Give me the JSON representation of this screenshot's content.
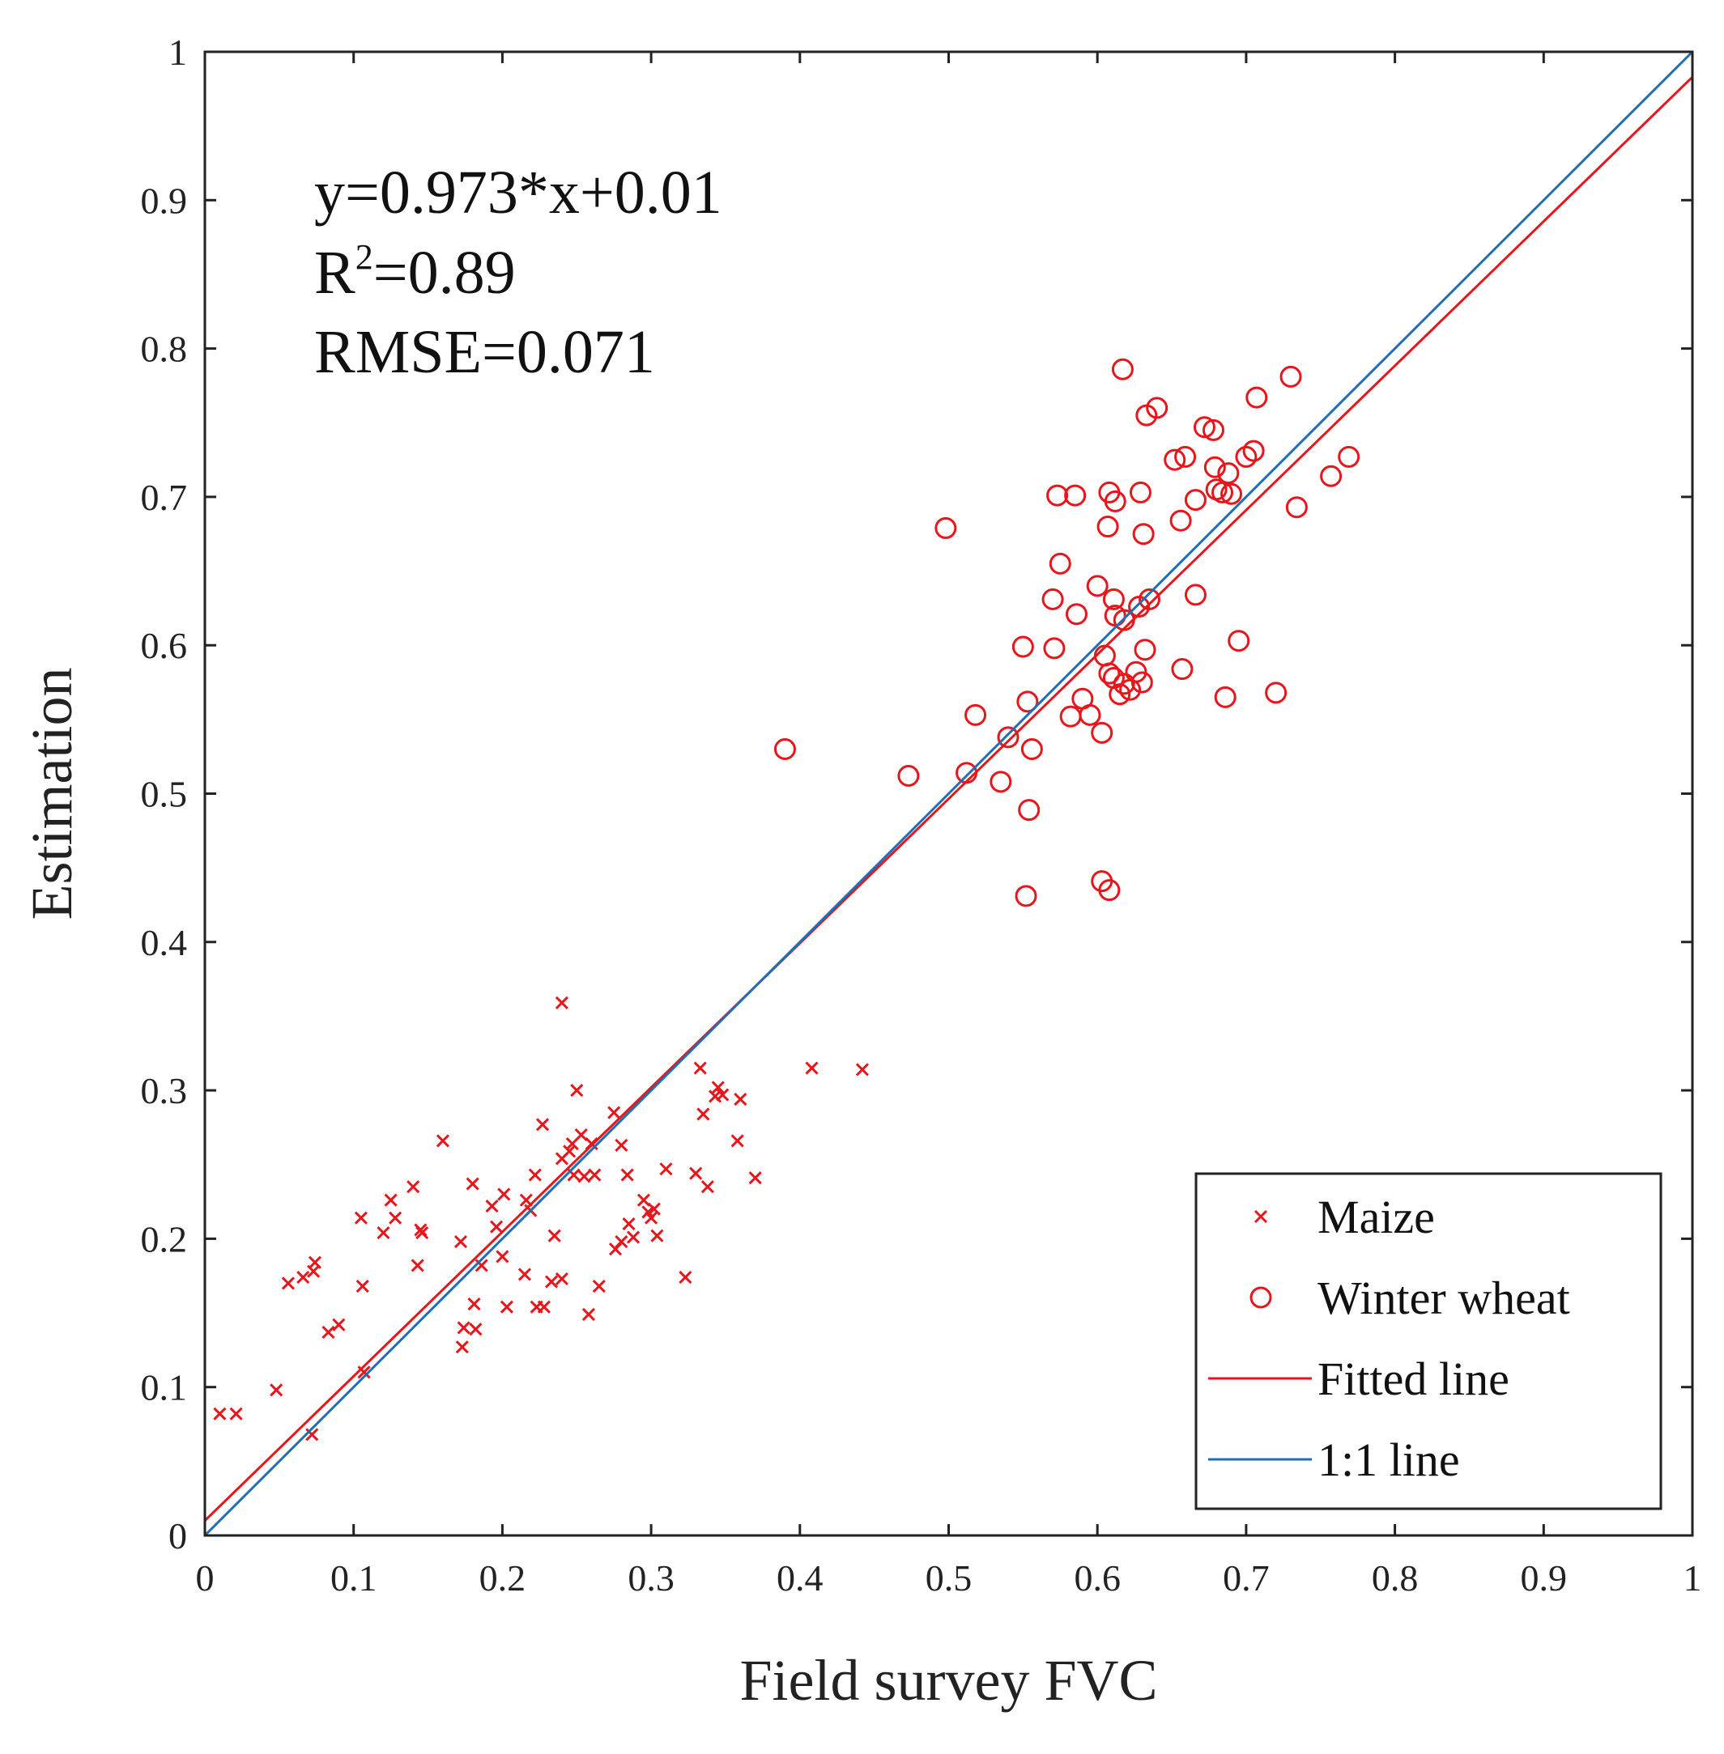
{
  "chart_data": {
    "type": "scatter",
    "xlabel": "Field survey FVC",
    "ylabel": "Estimation",
    "xlim": [
      0,
      1
    ],
    "ylim": [
      0,
      1
    ],
    "x_ticks": [
      "0",
      "0.1",
      "0.2",
      "0.3",
      "0.4",
      "0.5",
      "0.6",
      "0.7",
      "0.8",
      "0.9",
      "1"
    ],
    "y_ticks": [
      "0",
      "0.1",
      "0.2",
      "0.3",
      "0.4",
      "0.5",
      "0.6",
      "0.7",
      "0.8",
      "0.9",
      "1"
    ],
    "grid": false,
    "legend_position": "bottom-right",
    "annotations": {
      "equation": "y=0.973*x+0.01",
      "r2_prefix": "R",
      "r2_sup": "2",
      "r2_suffix": "=0.89",
      "rmse": "RMSE=0.071"
    },
    "colors": {
      "points": "#e8161b",
      "fitted": "#e8161b",
      "one_to_one": "#1f6fb8",
      "axis": "#222222"
    },
    "series": [
      {
        "name": "Maize",
        "marker": "x",
        "points": [
          [
            0.01,
            0.082
          ],
          [
            0.021,
            0.082
          ],
          [
            0.048,
            0.098
          ],
          [
            0.056,
            0.17
          ],
          [
            0.066,
            0.174
          ],
          [
            0.072,
            0.068
          ],
          [
            0.073,
            0.178
          ],
          [
            0.074,
            0.184
          ],
          [
            0.083,
            0.137
          ],
          [
            0.09,
            0.142
          ],
          [
            0.105,
            0.214
          ],
          [
            0.106,
            0.168
          ],
          [
            0.107,
            0.11
          ],
          [
            0.12,
            0.204
          ],
          [
            0.125,
            0.226
          ],
          [
            0.128,
            0.214
          ],
          [
            0.14,
            0.235
          ],
          [
            0.143,
            0.182
          ],
          [
            0.145,
            0.206
          ],
          [
            0.146,
            0.204
          ],
          [
            0.16,
            0.266
          ],
          [
            0.172,
            0.198
          ],
          [
            0.173,
            0.127
          ],
          [
            0.174,
            0.14
          ],
          [
            0.18,
            0.237
          ],
          [
            0.181,
            0.156
          ],
          [
            0.182,
            0.139
          ],
          [
            0.186,
            0.182
          ],
          [
            0.193,
            0.222
          ],
          [
            0.196,
            0.208
          ],
          [
            0.2,
            0.188
          ],
          [
            0.201,
            0.23
          ],
          [
            0.203,
            0.154
          ],
          [
            0.215,
            0.176
          ],
          [
            0.216,
            0.226
          ],
          [
            0.219,
            0.219
          ],
          [
            0.222,
            0.243
          ],
          [
            0.223,
            0.154
          ],
          [
            0.227,
            0.277
          ],
          [
            0.228,
            0.154
          ],
          [
            0.233,
            0.171
          ],
          [
            0.235,
            0.202
          ],
          [
            0.24,
            0.173
          ],
          [
            0.24,
            0.254
          ],
          [
            0.24,
            0.359
          ],
          [
            0.245,
            0.259
          ],
          [
            0.247,
            0.264
          ],
          [
            0.248,
            0.243
          ],
          [
            0.25,
            0.3
          ],
          [
            0.253,
            0.27
          ],
          [
            0.255,
            0.242
          ],
          [
            0.258,
            0.149
          ],
          [
            0.26,
            0.264
          ],
          [
            0.262,
            0.243
          ],
          [
            0.265,
            0.168
          ],
          [
            0.275,
            0.285
          ],
          [
            0.276,
            0.193
          ],
          [
            0.28,
            0.263
          ],
          [
            0.28,
            0.198
          ],
          [
            0.284,
            0.243
          ],
          [
            0.285,
            0.21
          ],
          [
            0.288,
            0.201
          ],
          [
            0.295,
            0.226
          ],
          [
            0.298,
            0.218
          ],
          [
            0.3,
            0.214
          ],
          [
            0.302,
            0.22
          ],
          [
            0.304,
            0.202
          ],
          [
            0.31,
            0.247
          ],
          [
            0.323,
            0.174
          ],
          [
            0.33,
            0.244
          ],
          [
            0.333,
            0.315
          ],
          [
            0.335,
            0.284
          ],
          [
            0.338,
            0.235
          ],
          [
            0.343,
            0.296
          ],
          [
            0.345,
            0.302
          ],
          [
            0.348,
            0.297
          ],
          [
            0.358,
            0.266
          ],
          [
            0.36,
            0.294
          ],
          [
            0.37,
            0.241
          ],
          [
            0.408,
            0.315
          ],
          [
            0.442,
            0.314
          ]
        ]
      },
      {
        "name": "Winter wheat",
        "marker": "o",
        "points": [
          [
            0.39,
            0.53
          ],
          [
            0.473,
            0.512
          ],
          [
            0.498,
            0.679
          ],
          [
            0.512,
            0.514
          ],
          [
            0.518,
            0.553
          ],
          [
            0.535,
            0.508
          ],
          [
            0.54,
            0.538
          ],
          [
            0.55,
            0.599
          ],
          [
            0.552,
            0.431
          ],
          [
            0.553,
            0.562
          ],
          [
            0.554,
            0.489
          ],
          [
            0.556,
            0.53
          ],
          [
            0.57,
            0.631
          ],
          [
            0.571,
            0.598
          ],
          [
            0.573,
            0.701
          ],
          [
            0.575,
            0.655
          ],
          [
            0.582,
            0.552
          ],
          [
            0.585,
            0.701
          ],
          [
            0.586,
            0.621
          ],
          [
            0.59,
            0.564
          ],
          [
            0.595,
            0.553
          ],
          [
            0.6,
            0.64
          ],
          [
            0.603,
            0.441
          ],
          [
            0.603,
            0.541
          ],
          [
            0.605,
            0.593
          ],
          [
            0.607,
            0.68
          ],
          [
            0.608,
            0.435
          ],
          [
            0.608,
            0.581
          ],
          [
            0.608,
            0.703
          ],
          [
            0.611,
            0.631
          ],
          [
            0.611,
            0.578
          ],
          [
            0.612,
            0.697
          ],
          [
            0.612,
            0.62
          ],
          [
            0.615,
            0.567
          ],
          [
            0.617,
            0.786
          ],
          [
            0.618,
            0.574
          ],
          [
            0.618,
            0.617
          ],
          [
            0.622,
            0.57
          ],
          [
            0.626,
            0.582
          ],
          [
            0.628,
            0.626
          ],
          [
            0.629,
            0.703
          ],
          [
            0.63,
            0.575
          ],
          [
            0.631,
            0.675
          ],
          [
            0.632,
            0.597
          ],
          [
            0.633,
            0.755
          ],
          [
            0.635,
            0.631
          ],
          [
            0.64,
            0.76
          ],
          [
            0.652,
            0.725
          ],
          [
            0.656,
            0.684
          ],
          [
            0.657,
            0.584
          ],
          [
            0.659,
            0.727
          ],
          [
            0.666,
            0.698
          ],
          [
            0.666,
            0.634
          ],
          [
            0.672,
            0.747
          ],
          [
            0.678,
            0.745
          ],
          [
            0.679,
            0.72
          ],
          [
            0.68,
            0.705
          ],
          [
            0.684,
            0.703
          ],
          [
            0.686,
            0.565
          ],
          [
            0.688,
            0.716
          ],
          [
            0.69,
            0.702
          ],
          [
            0.695,
            0.603
          ],
          [
            0.7,
            0.727
          ],
          [
            0.705,
            0.731
          ],
          [
            0.707,
            0.767
          ],
          [
            0.72,
            0.568
          ],
          [
            0.73,
            0.781
          ],
          [
            0.734,
            0.693
          ],
          [
            0.757,
            0.714
          ],
          [
            0.769,
            0.727
          ]
        ]
      },
      {
        "name": "Fitted line",
        "slope": 0.973,
        "intercept": 0.01
      },
      {
        "name": "1:1 line",
        "slope": 1,
        "intercept": 0
      }
    ]
  }
}
